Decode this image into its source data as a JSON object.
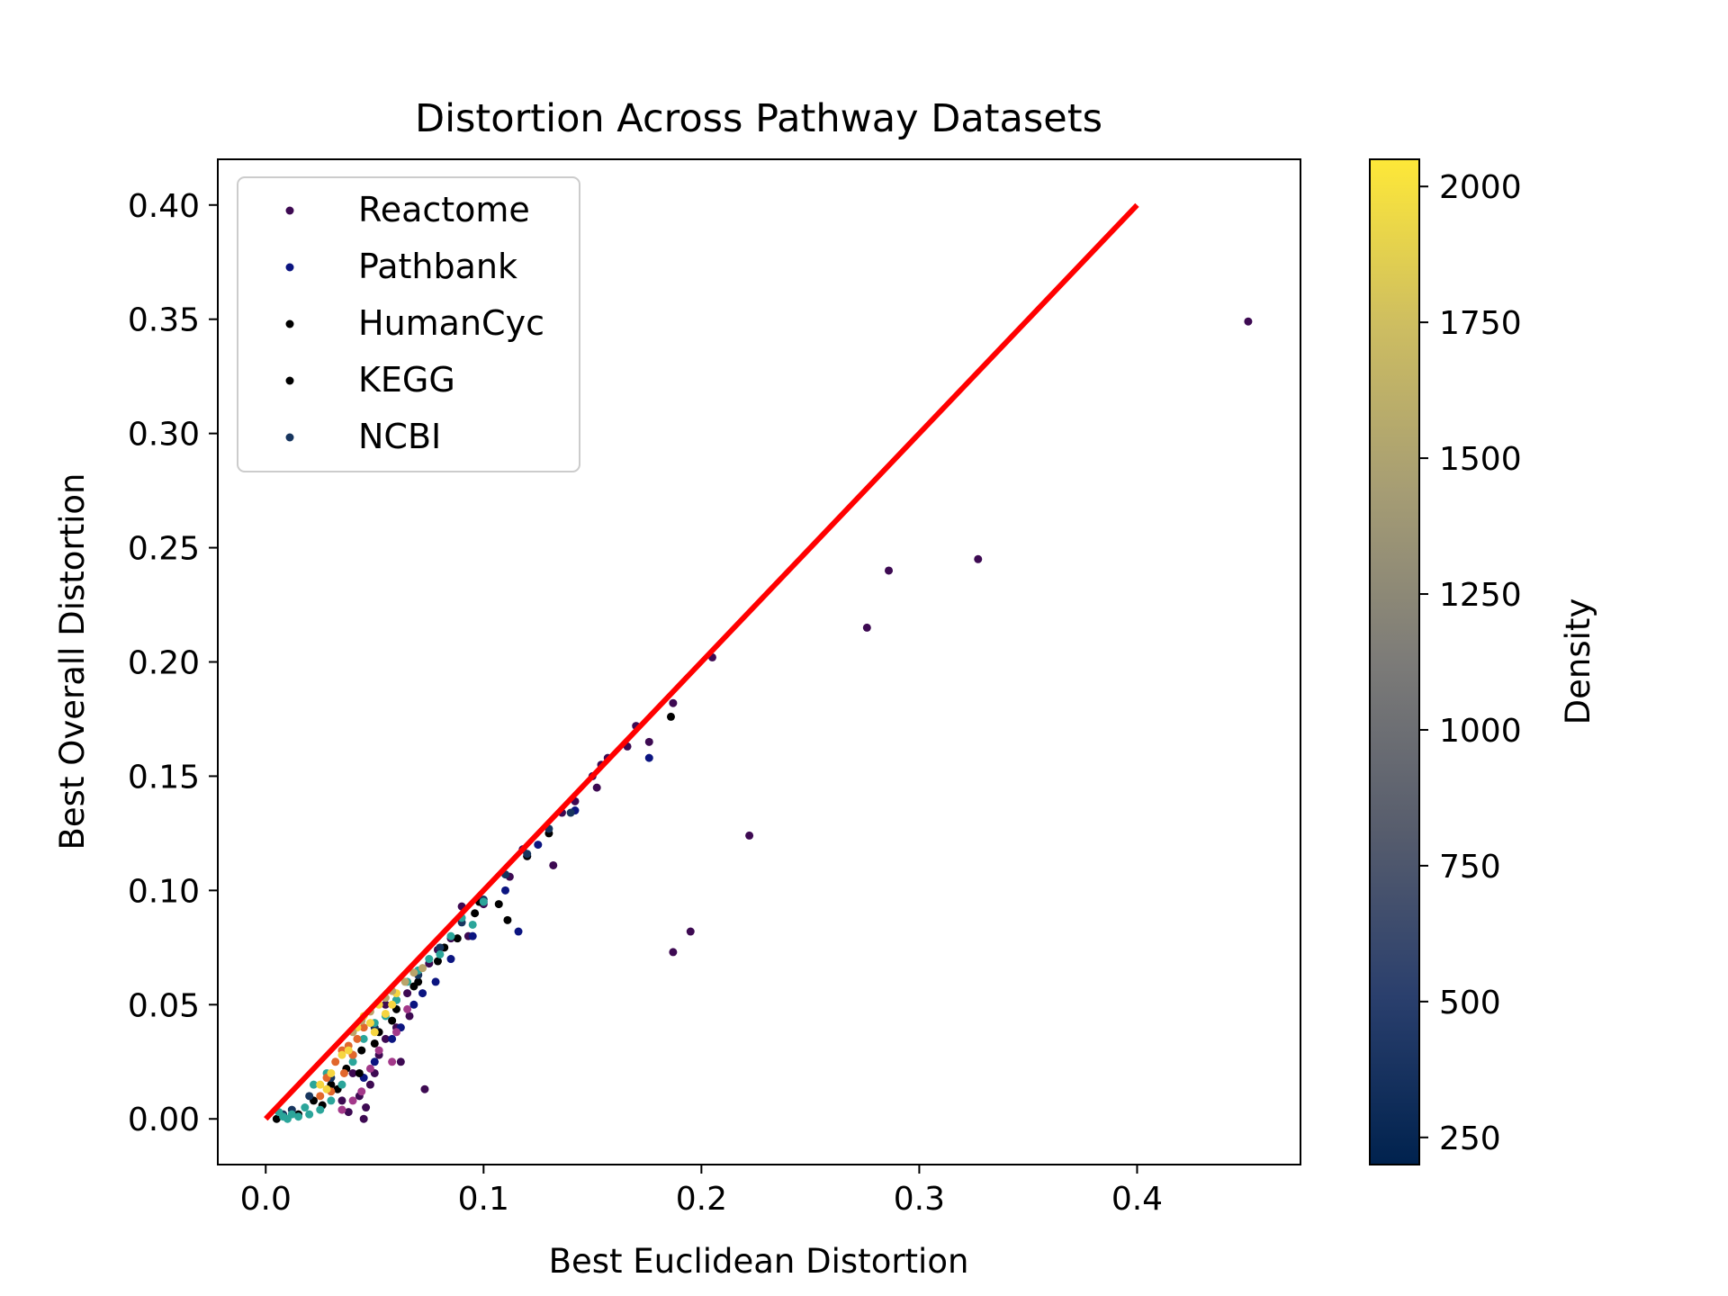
{
  "chart_data": {
    "type": "scatter",
    "title": "Distortion Across Pathway Datasets",
    "xlabel": "Best Euclidean Distortion",
    "ylabel": "Best Overall Distortion",
    "xlim": [
      -0.022,
      0.475
    ],
    "ylim": [
      -0.02,
      0.42
    ],
    "xticks": [
      0.0,
      0.1,
      0.2,
      0.3,
      0.4
    ],
    "xtick_labels": [
      "0.0",
      "0.1",
      "0.2",
      "0.3",
      "0.4"
    ],
    "yticks": [
      0.0,
      0.05,
      0.1,
      0.15,
      0.2,
      0.25,
      0.3,
      0.35,
      0.4
    ],
    "ytick_labels": [
      "0.00",
      "0.05",
      "0.10",
      "0.15",
      "0.20",
      "0.25",
      "0.30",
      "0.35",
      "0.40"
    ],
    "grid": false,
    "legend_position": "top-left",
    "reference_line": {
      "x": [
        0.0,
        0.4
      ],
      "y": [
        0.0,
        0.4
      ],
      "color": "#ff0000"
    },
    "series": [
      {
        "name": "Reactome",
        "color": "#3d0a52",
        "points": [
          [
            0.451,
            0.349
          ],
          [
            0.327,
            0.245
          ],
          [
            0.286,
            0.24
          ],
          [
            0.276,
            0.215
          ],
          [
            0.222,
            0.124
          ],
          [
            0.195,
            0.082
          ],
          [
            0.187,
            0.073
          ],
          [
            0.205,
            0.202
          ],
          [
            0.187,
            0.182
          ],
          [
            0.176,
            0.165
          ],
          [
            0.17,
            0.172
          ],
          [
            0.166,
            0.163
          ],
          [
            0.157,
            0.158
          ],
          [
            0.154,
            0.155
          ],
          [
            0.152,
            0.145
          ],
          [
            0.15,
            0.15
          ],
          [
            0.142,
            0.139
          ],
          [
            0.136,
            0.134
          ],
          [
            0.132,
            0.111
          ],
          [
            0.12,
            0.115
          ],
          [
            0.118,
            0.118
          ],
          [
            0.112,
            0.106
          ],
          [
            0.1,
            0.094
          ],
          [
            0.09,
            0.093
          ],
          [
            0.093,
            0.08
          ],
          [
            0.085,
            0.079
          ],
          [
            0.079,
            0.074
          ],
          [
            0.075,
            0.068
          ],
          [
            0.073,
            0.013
          ],
          [
            0.07,
            0.063
          ],
          [
            0.065,
            0.055
          ],
          [
            0.062,
            0.025
          ],
          [
            0.066,
            0.045
          ],
          [
            0.06,
            0.04
          ],
          [
            0.055,
            0.035
          ],
          [
            0.052,
            0.028
          ],
          [
            0.05,
            0.02
          ],
          [
            0.048,
            0.015
          ],
          [
            0.046,
            0.005
          ],
          [
            0.045,
            0.0
          ],
          [
            0.043,
            0.01
          ],
          [
            0.04,
            0.02
          ],
          [
            0.038,
            0.003
          ],
          [
            0.035,
            0.008
          ],
          [
            0.055,
            0.05
          ]
        ]
      },
      {
        "name": "Pathbank",
        "color": "#0b1480",
        "points": [
          [
            0.176,
            0.158
          ],
          [
            0.116,
            0.082
          ],
          [
            0.11,
            0.1
          ],
          [
            0.095,
            0.08
          ],
          [
            0.078,
            0.06
          ],
          [
            0.068,
            0.05
          ],
          [
            0.058,
            0.035
          ],
          [
            0.05,
            0.025
          ],
          [
            0.045,
            0.018
          ],
          [
            0.142,
            0.135
          ],
          [
            0.125,
            0.12
          ],
          [
            0.1,
            0.095
          ],
          [
            0.085,
            0.07
          ],
          [
            0.072,
            0.055
          ],
          [
            0.062,
            0.04
          ]
        ]
      },
      {
        "name": "HumanCyc",
        "color": "#000000",
        "points": [
          [
            0.186,
            0.176
          ],
          [
            0.13,
            0.125
          ],
          [
            0.111,
            0.087
          ],
          [
            0.107,
            0.094
          ],
          [
            0.098,
            0.095
          ],
          [
            0.088,
            0.079
          ],
          [
            0.079,
            0.069
          ],
          [
            0.068,
            0.058
          ],
          [
            0.058,
            0.043
          ],
          [
            0.05,
            0.033
          ],
          [
            0.043,
            0.02
          ],
          [
            0.033,
            0.013
          ],
          [
            0.026,
            0.006
          ],
          [
            0.015,
            0.002
          ],
          [
            0.005,
            0.0
          ]
        ]
      },
      {
        "name": "KEGG",
        "color": "#000000",
        "points": [
          [
            0.12,
            0.115
          ],
          [
            0.096,
            0.09
          ],
          [
            0.082,
            0.075
          ],
          [
            0.07,
            0.06
          ],
          [
            0.06,
            0.048
          ],
          [
            0.052,
            0.038
          ],
          [
            0.044,
            0.03
          ],
          [
            0.037,
            0.022
          ],
          [
            0.03,
            0.015
          ],
          [
            0.022,
            0.008
          ]
        ]
      },
      {
        "name": "NCBI",
        "color": "#17355e",
        "points": [
          [
            0.14,
            0.134
          ],
          [
            0.13,
            0.127
          ],
          [
            0.12,
            0.116
          ],
          [
            0.11,
            0.107
          ],
          [
            0.1,
            0.096
          ],
          [
            0.09,
            0.086
          ],
          [
            0.08,
            0.075
          ],
          [
            0.07,
            0.063
          ],
          [
            0.06,
            0.052
          ],
          [
            0.05,
            0.04
          ],
          [
            0.04,
            0.028
          ],
          [
            0.03,
            0.018
          ],
          [
            0.02,
            0.01
          ],
          [
            0.012,
            0.004
          ],
          [
            0.008,
            0.002
          ]
        ]
      },
      {
        "name": "",
        "color": "#2ba59a",
        "points": [
          [
            0.1,
            0.095
          ],
          [
            0.095,
            0.085
          ],
          [
            0.09,
            0.088
          ],
          [
            0.085,
            0.08
          ],
          [
            0.08,
            0.072
          ],
          [
            0.075,
            0.07
          ],
          [
            0.07,
            0.065
          ],
          [
            0.065,
            0.06
          ],
          [
            0.06,
            0.052
          ],
          [
            0.055,
            0.045
          ],
          [
            0.05,
            0.042
          ],
          [
            0.045,
            0.035
          ],
          [
            0.04,
            0.025
          ],
          [
            0.035,
            0.015
          ],
          [
            0.03,
            0.008
          ],
          [
            0.025,
            0.004
          ],
          [
            0.02,
            0.002
          ],
          [
            0.015,
            0.001
          ],
          [
            0.01,
            0.0
          ],
          [
            0.022,
            0.015
          ],
          [
            0.028,
            0.02
          ],
          [
            0.018,
            0.005
          ],
          [
            0.012,
            0.002
          ],
          [
            0.008,
            0.001
          ],
          [
            0.006,
            0.003
          ]
        ]
      },
      {
        "name": "",
        "color": "#e2672c",
        "points": [
          [
            0.035,
            0.03
          ],
          [
            0.032,
            0.025
          ],
          [
            0.028,
            0.018
          ],
          [
            0.038,
            0.032
          ],
          [
            0.042,
            0.035
          ],
          [
            0.025,
            0.01
          ],
          [
            0.03,
            0.012
          ],
          [
            0.045,
            0.04
          ],
          [
            0.036,
            0.02
          ],
          [
            0.04,
            0.028
          ]
        ]
      },
      {
        "name": "",
        "color": "#f6d540",
        "points": [
          [
            0.052,
            0.05
          ],
          [
            0.055,
            0.046
          ],
          [
            0.058,
            0.05
          ],
          [
            0.048,
            0.042
          ],
          [
            0.045,
            0.045
          ],
          [
            0.05,
            0.038
          ],
          [
            0.06,
            0.055
          ],
          [
            0.042,
            0.04
          ],
          [
            0.035,
            0.028
          ],
          [
            0.038,
            0.03
          ],
          [
            0.03,
            0.02
          ],
          [
            0.025,
            0.015
          ],
          [
            0.028,
            0.013
          ]
        ]
      },
      {
        "name": "",
        "color": "#b9a46a",
        "points": [
          [
            0.064,
            0.06
          ],
          [
            0.068,
            0.064
          ],
          [
            0.072,
            0.066
          ],
          [
            0.058,
            0.056
          ],
          [
            0.055,
            0.053
          ],
          [
            0.048,
            0.047
          ],
          [
            0.044,
            0.043
          ],
          [
            0.04,
            0.038
          ]
        ]
      },
      {
        "name": "",
        "color": "#a3398a",
        "points": [
          [
            0.052,
            0.03
          ],
          [
            0.048,
            0.022
          ],
          [
            0.044,
            0.012
          ],
          [
            0.06,
            0.038
          ],
          [
            0.058,
            0.025
          ],
          [
            0.04,
            0.008
          ],
          [
            0.035,
            0.004
          ],
          [
            0.065,
            0.048
          ]
        ]
      }
    ],
    "colorbar": {
      "label": "Density",
      "range": [
        200,
        2050
      ],
      "ticks": [
        250,
        500,
        750,
        1000,
        1250,
        1500,
        1750,
        2000
      ],
      "tick_labels": [
        "250",
        "500",
        "750",
        "1000",
        "1250",
        "1500",
        "1750",
        "2000"
      ],
      "colormap": "cividis",
      "colors": [
        "#00224e",
        "#2a3f6d",
        "#575d6d",
        "#7c7b78",
        "#a59c74",
        "#cdbd61",
        "#fee838"
      ]
    }
  }
}
